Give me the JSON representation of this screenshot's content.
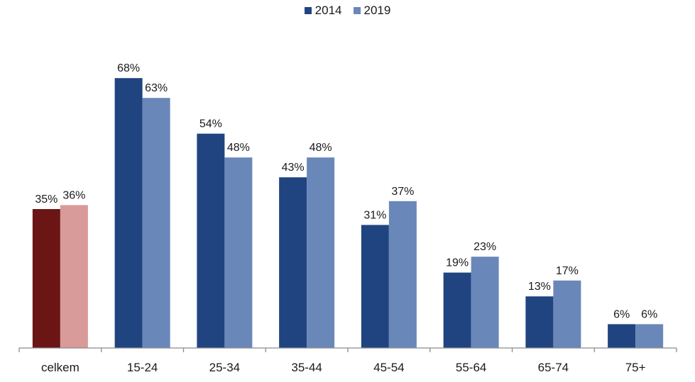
{
  "chart_data": {
    "type": "bar",
    "categories": [
      "celkem",
      "15-24",
      "25-34",
      "35-44",
      "45-54",
      "55-64",
      "65-74",
      "75+"
    ],
    "series": [
      {
        "name": "2014",
        "values": [
          35,
          68,
          54,
          43,
          31,
          19,
          13,
          6
        ],
        "labels": [
          "35%",
          "68%",
          "54%",
          "43%",
          "31%",
          "19%",
          "13%",
          "6%"
        ]
      },
      {
        "name": "2019",
        "values": [
          36,
          63,
          48,
          48,
          37,
          23,
          17,
          6
        ],
        "labels": [
          "36%",
          "63%",
          "48%",
          "48%",
          "37%",
          "23%",
          "17%",
          "6%"
        ]
      }
    ],
    "ylim": [
      0,
      70
    ],
    "legend_position": "top-center",
    "grid": false,
    "colors": {
      "series_2014": "#204480",
      "series_2019": "#6a87b9",
      "highlight_2014": "#6b1515",
      "highlight_2019": "#d99a9a",
      "axis": "#8c8c8c"
    },
    "highlighted_category": "celkem"
  }
}
